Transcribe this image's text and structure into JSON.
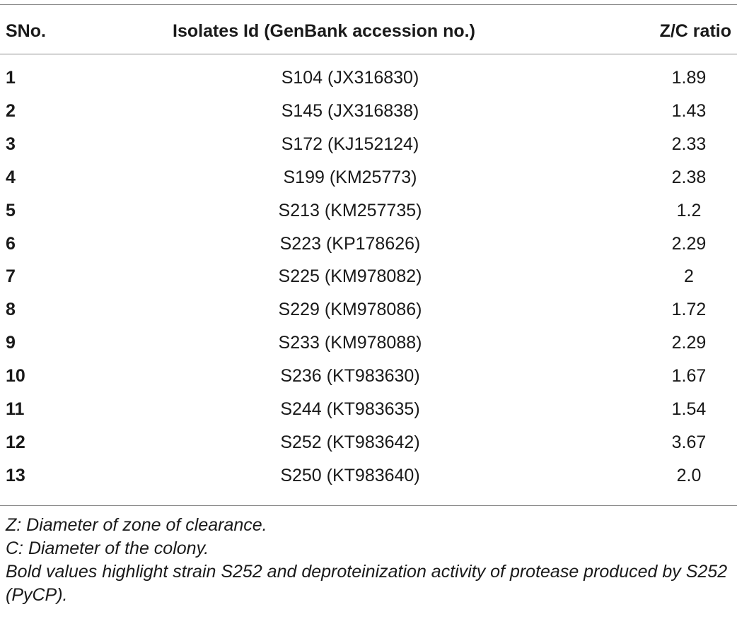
{
  "table": {
    "headers": {
      "sno": "SNo.",
      "isolate": "Isolates Id (GenBank accession no.)",
      "ratio": "Z/C ratio"
    },
    "rows": [
      {
        "sno": "1",
        "isolate": "S104 (JX316830)",
        "ratio": "1.89"
      },
      {
        "sno": "2",
        "isolate": "S145 (JX316838)",
        "ratio": "1.43"
      },
      {
        "sno": "3",
        "isolate": "S172 (KJ152124)",
        "ratio": "2.33"
      },
      {
        "sno": "4",
        "isolate": "S199 (KM25773)",
        "ratio": "2.38"
      },
      {
        "sno": "5",
        "isolate": "S213 (KM257735)",
        "ratio": "1.2"
      },
      {
        "sno": "6",
        "isolate": "S223 (KP178626)",
        "ratio": "2.29"
      },
      {
        "sno": "7",
        "isolate": "S225 (KM978082)",
        "ratio": "2"
      },
      {
        "sno": "8",
        "isolate": "S229 (KM978086)",
        "ratio": "1.72"
      },
      {
        "sno": "9",
        "isolate": "S233 (KM978088)",
        "ratio": "2.29"
      },
      {
        "sno": "10",
        "isolate": "S236 (KT983630)",
        "ratio": "1.67"
      },
      {
        "sno": "11",
        "isolate": "S244 (KT983635)",
        "ratio": "1.54"
      },
      {
        "sno": "12",
        "isolate": "S252 (KT983642)",
        "ratio": "3.67"
      },
      {
        "sno": "13",
        "isolate": "S250 (KT983640)",
        "ratio": "2.0"
      }
    ]
  },
  "footnotes": {
    "z": "Z: Diameter of zone of clearance.",
    "c": "C: Diameter of the colony.",
    "bold": "Bold values highlight strain S252 and deproteinization activity of protease produced by S252 (PyCP)."
  }
}
